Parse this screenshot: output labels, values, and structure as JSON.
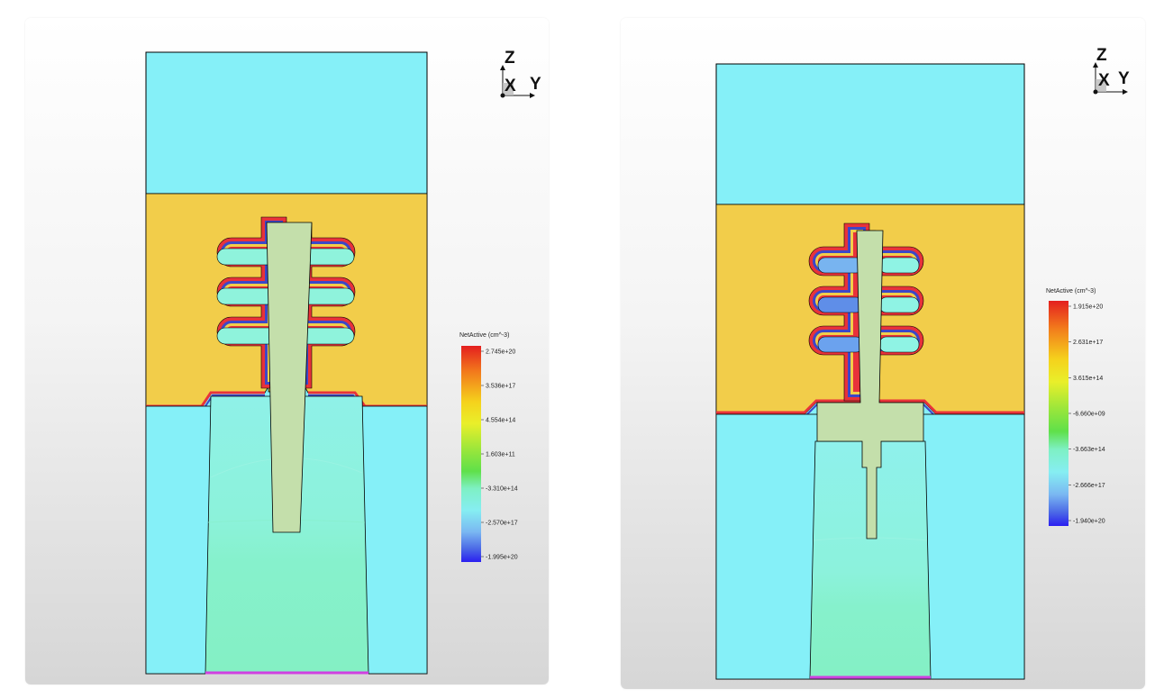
{
  "views": [
    {
      "axis_labels": {
        "z": "Z",
        "x": "X",
        "y": "Y"
      },
      "legend": {
        "title": "NetActive (cm^-3)",
        "ticks": [
          "2.745e+20",
          "3.536e+17",
          "4.554e+14",
          "1.603e+11",
          "-3.310e+14",
          "-2.570e+17",
          "-1.995e+20"
        ]
      }
    },
    {
      "axis_labels": {
        "z": "Z",
        "x": "X",
        "y": "Y"
      },
      "legend": {
        "title": "NetActive (cm^-3)",
        "ticks": [
          "1.915e+20",
          "2.631e+17",
          "3.615e+14",
          "-6.660e+09",
          "-3.663e+14",
          "-2.666e+17",
          "-1.940e+20"
        ]
      }
    }
  ],
  "colors": {
    "oxide_cyan": "#85f0f8",
    "silicon_yellow": "#f2cd4a",
    "poly_green": "#c4dfab",
    "channel_green": "#86f1cc",
    "liner_red": "#e8323a",
    "liner_blue": "#3c47c8",
    "bottom_contact": "#d040e0"
  },
  "colorbar_stops": [
    "#e41f1f",
    "#f27a1c",
    "#f5d21c",
    "#e9ef2a",
    "#9ae63b",
    "#5fe04a",
    "#7ef0c4",
    "#86eef2",
    "#7ab8f2",
    "#4b68e6",
    "#2a1ff0"
  ]
}
